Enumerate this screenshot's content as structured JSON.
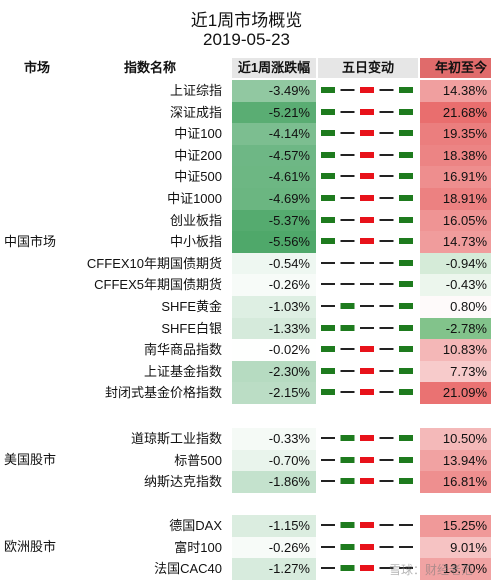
{
  "title": "近1周市场概览",
  "date": "2019-05-23",
  "headers": {
    "market": "市场",
    "name": "指数名称",
    "weekly": "近1周涨跌幅",
    "five_day": "五日变动",
    "ytd": "年初至今"
  },
  "groups": [
    {
      "name": "中国市场",
      "rows": [
        {
          "name": "上证综指",
          "weekly": "-3.49%",
          "w": -3.49,
          "ytd": "14.38%",
          "y": 14.38,
          "five": [
            1,
            -1,
            1,
            -1,
            1
          ]
        },
        {
          "name": "深证成指",
          "weekly": "-5.21%",
          "w": -5.21,
          "ytd": "21.68%",
          "y": 21.68,
          "five": [
            1,
            -1,
            1,
            -1,
            1
          ]
        },
        {
          "name": "中证100",
          "weekly": "-4.14%",
          "w": -4.14,
          "ytd": "19.35%",
          "y": 19.35,
          "five": [
            1,
            -1,
            1,
            -1,
            1
          ]
        },
        {
          "name": "中证200",
          "weekly": "-4.57%",
          "w": -4.57,
          "ytd": "18.38%",
          "y": 18.38,
          "five": [
            1,
            -1,
            1,
            -1,
            1
          ]
        },
        {
          "name": "中证500",
          "weekly": "-4.61%",
          "w": -4.61,
          "ytd": "16.91%",
          "y": 16.91,
          "five": [
            1,
            -1,
            1,
            -1,
            1
          ]
        },
        {
          "name": "中证1000",
          "weekly": "-4.69%",
          "w": -4.69,
          "ytd": "18.91%",
          "y": 18.91,
          "five": [
            1,
            -1,
            1,
            -1,
            1
          ]
        },
        {
          "name": "创业板指",
          "weekly": "-5.37%",
          "w": -5.37,
          "ytd": "16.05%",
          "y": 16.05,
          "five": [
            1,
            -1,
            1,
            -1,
            1
          ]
        },
        {
          "name": "中小板指",
          "weekly": "-5.56%",
          "w": -5.56,
          "ytd": "14.73%",
          "y": 14.73,
          "five": [
            1,
            -1,
            1,
            -1,
            1
          ]
        },
        {
          "name": "CFFEX10年期国债期货",
          "weekly": "-0.54%",
          "w": -0.54,
          "ytd": "-0.94%",
          "y": -0.94,
          "five": [
            -1,
            -1,
            -1,
            -1,
            1
          ]
        },
        {
          "name": "CFFEX5年期国债期货",
          "weekly": "-0.26%",
          "w": -0.26,
          "ytd": "-0.43%",
          "y": -0.43,
          "five": [
            -1,
            -1,
            -1,
            -1,
            1
          ]
        },
        {
          "name": "SHFE黄金",
          "weekly": "-1.03%",
          "w": -1.03,
          "ytd": "0.80%",
          "y": 0.8,
          "five": [
            -1,
            1,
            -1,
            -1,
            1
          ]
        },
        {
          "name": "SHFE白银",
          "weekly": "-1.33%",
          "w": -1.33,
          "ytd": "-2.78%",
          "y": -2.78,
          "five": [
            1,
            1,
            -1,
            -1,
            1
          ]
        },
        {
          "name": "南华商品指数",
          "weekly": "-0.02%",
          "w": -0.02,
          "ytd": "10.83%",
          "y": 10.83,
          "five": [
            1,
            -1,
            1,
            -1,
            1
          ]
        },
        {
          "name": "上证基金指数",
          "weekly": "-2.30%",
          "w": -2.3,
          "ytd": "7.73%",
          "y": 7.73,
          "five": [
            1,
            -1,
            1,
            -1,
            1
          ]
        },
        {
          "name": "封闭式基金价格指数",
          "weekly": "-2.15%",
          "w": -2.15,
          "ytd": "21.09%",
          "y": 21.09,
          "five": [
            1,
            -1,
            1,
            -1,
            1
          ]
        }
      ]
    },
    {
      "name": "美国股市",
      "rows": [
        {
          "name": "道琼斯工业指数",
          "weekly": "-0.33%",
          "w": -0.33,
          "ytd": "10.50%",
          "y": 10.5,
          "five": [
            -1,
            1,
            1,
            -1,
            1
          ]
        },
        {
          "name": "标普500",
          "weekly": "-0.70%",
          "w": -0.7,
          "ytd": "13.94%",
          "y": 13.94,
          "five": [
            -1,
            1,
            1,
            -1,
            1
          ]
        },
        {
          "name": "纳斯达克指数",
          "weekly": "-1.86%",
          "w": -1.86,
          "ytd": "16.81%",
          "y": 16.81,
          "five": [
            -1,
            1,
            1,
            -1,
            1
          ]
        }
      ]
    },
    {
      "name": "欧洲股市",
      "rows": [
        {
          "name": "德国DAX",
          "weekly": "-1.15%",
          "w": -1.15,
          "ytd": "15.25%",
          "y": 15.25,
          "five": [
            -1,
            1,
            1,
            -1,
            -1
          ]
        },
        {
          "name": "富时100",
          "weekly": "-0.26%",
          "w": -0.26,
          "ytd": "9.01%",
          "y": 9.01,
          "five": [
            -1,
            1,
            1,
            -1,
            -1
          ]
        },
        {
          "name": "法国CAC40",
          "weekly": "-1.27%",
          "w": -1.27,
          "ytd": "13.70%",
          "y": 13.7,
          "five": [
            -1,
            1,
            1,
            -1,
            -1
          ]
        }
      ]
    }
  ],
  "watermark": "雪球：财经老范",
  "colors": {
    "up": "#e8121a",
    "down": "#1e7b1e",
    "weekly_neg": "#4fa86a",
    "ytd_pos": "#e06060",
    "ytd_neg": "#5fb070"
  }
}
